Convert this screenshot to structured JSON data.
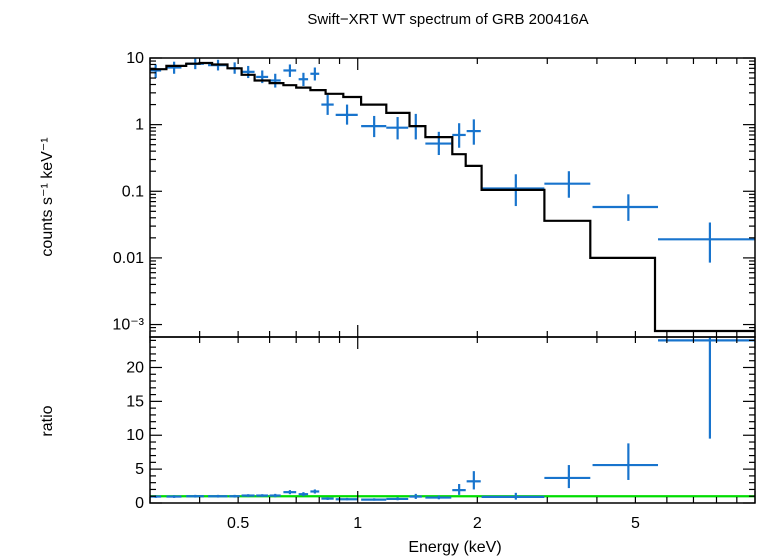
{
  "chart_data": {
    "type": "scatter",
    "title": "Swift−XRT WT spectrum of GRB 200416A",
    "xlabel": "Energy (keV)",
    "x_scale": "log",
    "x_range": [
      0.3,
      10
    ],
    "x_ticks": [
      {
        "value": 0.5,
        "label": "0.5"
      },
      {
        "value": 1,
        "label": "1"
      },
      {
        "value": 2,
        "label": "2"
      },
      {
        "value": 5,
        "label": "5"
      }
    ],
    "panels": [
      {
        "name": "spectrum",
        "ylabel": "counts s⁻¹ keV⁻¹",
        "y_scale": "log",
        "y_range": [
          0.0008,
          10
        ],
        "y_ticks": [
          {
            "value": 10,
            "label": "10"
          },
          {
            "value": 1,
            "label": "1"
          },
          {
            "value": 0.1,
            "label": "0.1"
          },
          {
            "value": 0.01,
            "label": "0.01"
          },
          {
            "value": 0.001,
            "label": "10⁻³"
          }
        ],
        "series": [
          {
            "kind": "data",
            "color": "#1874cd",
            "points": [
              {
                "x": 0.31,
                "y": 6.5,
                "xlo": 0.3,
                "xhi": 0.32,
                "ylo": 5.0,
                "yhi": 8.0
              },
              {
                "x": 0.345,
                "y": 7.2,
                "xlo": 0.33,
                "xhi": 0.36,
                "ylo": 5.8,
                "yhi": 8.8
              },
              {
                "x": 0.39,
                "y": 8.2,
                "xlo": 0.37,
                "xhi": 0.41,
                "ylo": 6.8,
                "yhi": 9.8
              },
              {
                "x": 0.445,
                "y": 7.8,
                "xlo": 0.42,
                "xhi": 0.47,
                "ylo": 6.5,
                "yhi": 9.4
              },
              {
                "x": 0.49,
                "y": 7.0,
                "xlo": 0.475,
                "xhi": 0.505,
                "ylo": 5.8,
                "yhi": 8.6
              },
              {
                "x": 0.53,
                "y": 6.2,
                "xlo": 0.51,
                "xhi": 0.55,
                "ylo": 5.0,
                "yhi": 7.6
              },
              {
                "x": 0.575,
                "y": 5.2,
                "xlo": 0.555,
                "xhi": 0.595,
                "ylo": 4.2,
                "yhi": 6.5
              },
              {
                "x": 0.62,
                "y": 4.6,
                "xlo": 0.6,
                "xhi": 0.64,
                "ylo": 3.6,
                "yhi": 5.8
              },
              {
                "x": 0.675,
                "y": 6.5,
                "xlo": 0.65,
                "xhi": 0.7,
                "ylo": 5.2,
                "yhi": 8.0
              },
              {
                "x": 0.73,
                "y": 4.8,
                "xlo": 0.71,
                "xhi": 0.75,
                "ylo": 3.8,
                "yhi": 6.0
              },
              {
                "x": 0.78,
                "y": 5.8,
                "xlo": 0.76,
                "xhi": 0.8,
                "ylo": 4.6,
                "yhi": 7.2
              },
              {
                "x": 0.84,
                "y": 2.0,
                "xlo": 0.81,
                "xhi": 0.87,
                "ylo": 1.4,
                "yhi": 2.8
              },
              {
                "x": 0.94,
                "y": 1.4,
                "xlo": 0.88,
                "xhi": 1.0,
                "ylo": 1.0,
                "yhi": 2.0
              },
              {
                "x": 1.1,
                "y": 0.95,
                "xlo": 1.02,
                "xhi": 1.18,
                "ylo": 0.65,
                "yhi": 1.35
              },
              {
                "x": 1.26,
                "y": 0.9,
                "xlo": 1.18,
                "xhi": 1.34,
                "ylo": 0.6,
                "yhi": 1.3
              },
              {
                "x": 1.4,
                "y": 0.95,
                "xlo": 1.35,
                "xhi": 1.45,
                "ylo": 0.6,
                "yhi": 1.45
              },
              {
                "x": 1.6,
                "y": 0.52,
                "xlo": 1.48,
                "xhi": 1.72,
                "ylo": 0.35,
                "yhi": 0.78
              },
              {
                "x": 1.8,
                "y": 0.7,
                "xlo": 1.73,
                "xhi": 1.87,
                "ylo": 0.45,
                "yhi": 1.05
              },
              {
                "x": 1.96,
                "y": 0.8,
                "xlo": 1.88,
                "xhi": 2.04,
                "ylo": 0.5,
                "yhi": 1.2
              },
              {
                "x": 2.5,
                "y": 0.11,
                "xlo": 2.05,
                "xhi": 2.95,
                "ylo": 0.06,
                "yhi": 0.18
              },
              {
                "x": 3.4,
                "y": 0.13,
                "xlo": 2.95,
                "xhi": 3.85,
                "ylo": 0.08,
                "yhi": 0.2
              },
              {
                "x": 4.8,
                "y": 0.058,
                "xlo": 3.9,
                "xhi": 5.7,
                "ylo": 0.036,
                "yhi": 0.09
              },
              {
                "x": 7.7,
                "y": 0.019,
                "xlo": 5.7,
                "xhi": 10.0,
                "ylo": 0.0085,
                "yhi": 0.034
              }
            ]
          },
          {
            "kind": "model",
            "color": "#000000",
            "steps": [
              {
                "xlo": 0.3,
                "xhi": 0.33,
                "y": 6.8
              },
              {
                "xlo": 0.33,
                "xhi": 0.37,
                "y": 7.6
              },
              {
                "xlo": 0.37,
                "xhi": 0.4,
                "y": 8.2
              },
              {
                "xlo": 0.4,
                "xhi": 0.43,
                "y": 8.4
              },
              {
                "xlo": 0.43,
                "xhi": 0.47,
                "y": 8.0
              },
              {
                "xlo": 0.47,
                "xhi": 0.51,
                "y": 7.0
              },
              {
                "xlo": 0.51,
                "xhi": 0.55,
                "y": 5.6
              },
              {
                "xlo": 0.55,
                "xhi": 0.6,
                "y": 4.6
              },
              {
                "xlo": 0.6,
                "xhi": 0.65,
                "y": 4.2
              },
              {
                "xlo": 0.65,
                "xhi": 0.7,
                "y": 3.9
              },
              {
                "xlo": 0.7,
                "xhi": 0.76,
                "y": 3.6
              },
              {
                "xlo": 0.76,
                "xhi": 0.83,
                "y": 3.3
              },
              {
                "xlo": 0.83,
                "xhi": 0.92,
                "y": 2.9
              },
              {
                "xlo": 0.92,
                "xhi": 1.02,
                "y": 2.6
              },
              {
                "xlo": 1.02,
                "xhi": 1.18,
                "y": 2.0
              },
              {
                "xlo": 1.18,
                "xhi": 1.35,
                "y": 1.5
              },
              {
                "xlo": 1.35,
                "xhi": 1.48,
                "y": 0.95
              },
              {
                "xlo": 1.48,
                "xhi": 1.73,
                "y": 0.65
              },
              {
                "xlo": 1.73,
                "xhi": 1.87,
                "y": 0.36
              },
              {
                "xlo": 1.87,
                "xhi": 2.05,
                "y": 0.24
              },
              {
                "xlo": 2.05,
                "xhi": 2.95,
                "y": 0.105
              },
              {
                "xlo": 2.95,
                "xhi": 3.85,
                "y": 0.036
              },
              {
                "xlo": 3.85,
                "xhi": 5.6,
                "y": 0.01
              },
              {
                "xlo": 5.6,
                "xhi": 10.0,
                "y": 0.0008
              }
            ]
          }
        ]
      },
      {
        "name": "ratio",
        "ylabel": "ratio",
        "y_scale": "linear",
        "y_range": [
          0,
          24.5
        ],
        "y_ticks": [
          {
            "value": 0,
            "label": "0"
          },
          {
            "value": 5,
            "label": "5"
          },
          {
            "value": 10,
            "label": "10"
          },
          {
            "value": 15,
            "label": "15"
          },
          {
            "value": 20,
            "label": "20"
          }
        ],
        "reference_line": {
          "y": 1.0,
          "color": "#00dd00"
        },
        "series": [
          {
            "kind": "data",
            "color": "#1874cd",
            "points": [
              {
                "x": 0.31,
                "y": 0.95,
                "xlo": 0.3,
                "xhi": 0.32,
                "ylo": 0.75,
                "yhi": 1.15
              },
              {
                "x": 0.345,
                "y": 0.95,
                "xlo": 0.33,
                "xhi": 0.36,
                "ylo": 0.75,
                "yhi": 1.15
              },
              {
                "x": 0.39,
                "y": 1.0,
                "xlo": 0.37,
                "xhi": 0.41,
                "ylo": 0.8,
                "yhi": 1.2
              },
              {
                "x": 0.445,
                "y": 1.0,
                "xlo": 0.42,
                "xhi": 0.47,
                "ylo": 0.8,
                "yhi": 1.2
              },
              {
                "x": 0.49,
                "y": 1.0,
                "xlo": 0.475,
                "xhi": 0.505,
                "ylo": 0.8,
                "yhi": 1.2
              },
              {
                "x": 0.53,
                "y": 1.1,
                "xlo": 0.51,
                "xhi": 0.55,
                "ylo": 0.9,
                "yhi": 1.3
              },
              {
                "x": 0.575,
                "y": 1.1,
                "xlo": 0.555,
                "xhi": 0.595,
                "ylo": 0.9,
                "yhi": 1.3
              },
              {
                "x": 0.62,
                "y": 1.1,
                "xlo": 0.6,
                "xhi": 0.64,
                "ylo": 0.85,
                "yhi": 1.35
              },
              {
                "x": 0.675,
                "y": 1.6,
                "xlo": 0.65,
                "xhi": 0.7,
                "ylo": 1.3,
                "yhi": 1.9
              },
              {
                "x": 0.73,
                "y": 1.3,
                "xlo": 0.71,
                "xhi": 0.75,
                "ylo": 1.0,
                "yhi": 1.6
              },
              {
                "x": 0.78,
                "y": 1.7,
                "xlo": 0.76,
                "xhi": 0.8,
                "ylo": 1.4,
                "yhi": 2.0
              },
              {
                "x": 0.84,
                "y": 0.65,
                "xlo": 0.81,
                "xhi": 0.87,
                "ylo": 0.45,
                "yhi": 0.85
              },
              {
                "x": 0.94,
                "y": 0.55,
                "xlo": 0.88,
                "xhi": 1.0,
                "ylo": 0.4,
                "yhi": 0.75
              },
              {
                "x": 1.1,
                "y": 0.5,
                "xlo": 1.02,
                "xhi": 1.18,
                "ylo": 0.35,
                "yhi": 0.7
              },
              {
                "x": 1.26,
                "y": 0.6,
                "xlo": 1.18,
                "xhi": 1.34,
                "ylo": 0.4,
                "yhi": 0.85
              },
              {
                "x": 1.4,
                "y": 0.95,
                "xlo": 1.35,
                "xhi": 1.45,
                "ylo": 0.6,
                "yhi": 1.35
              },
              {
                "x": 1.6,
                "y": 0.8,
                "xlo": 1.48,
                "xhi": 1.72,
                "ylo": 0.55,
                "yhi": 1.1
              },
              {
                "x": 1.8,
                "y": 1.9,
                "xlo": 1.73,
                "xhi": 1.87,
                "ylo": 1.2,
                "yhi": 2.8
              },
              {
                "x": 1.96,
                "y": 3.2,
                "xlo": 1.88,
                "xhi": 2.04,
                "ylo": 2.0,
                "yhi": 4.7
              },
              {
                "x": 2.5,
                "y": 0.9,
                "xlo": 2.05,
                "xhi": 2.95,
                "ylo": 0.5,
                "yhi": 1.5
              },
              {
                "x": 3.4,
                "y": 3.7,
                "xlo": 2.95,
                "xhi": 3.85,
                "ylo": 2.2,
                "yhi": 5.6
              },
              {
                "x": 4.8,
                "y": 5.6,
                "xlo": 3.9,
                "xhi": 5.7,
                "ylo": 3.4,
                "yhi": 8.8
              },
              {
                "x": 7.7,
                "y": 24.0,
                "xlo": 5.7,
                "xhi": 10.0,
                "ylo": 9.5,
                "yhi": 24.5
              }
            ]
          }
        ]
      }
    ]
  }
}
